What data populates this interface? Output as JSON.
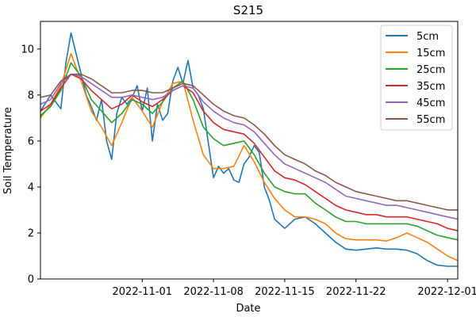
{
  "chart_data": {
    "type": "line",
    "title": "S215",
    "xlabel": "Date",
    "ylabel": "Soil Temperature",
    "xlim": [
      "2022-10-22",
      "2022-12-02"
    ],
    "ylim": [
      0,
      11.2
    ],
    "x_ticks": [
      "2022-11-01",
      "2022-11-08",
      "2022-11-15",
      "2022-11-22",
      "2022-12-01"
    ],
    "y_ticks": [
      0,
      2,
      4,
      6,
      8,
      10
    ],
    "grid": false,
    "legend_position": "top-right",
    "series": [
      {
        "name": "5cm",
        "color": "#1f77b4",
        "x": [
          "2022-10-22",
          "2022-10-23",
          "2022-10-24",
          "2022-10-24.5",
          "2022-10-25",
          "2022-10-26",
          "2022-10-26.5",
          "2022-10-27",
          "2022-10-27.5",
          "2022-10-28",
          "2022-10-28.5",
          "2022-10-29",
          "2022-10-29.5",
          "2022-10-30",
          "2022-10-30.5",
          "2022-10-31",
          "2022-10-31.5",
          "2022-11-01",
          "2022-11-01.5",
          "2022-11-02",
          "2022-11-02.5",
          "2022-11-03",
          "2022-11-03.5",
          "2022-11-04",
          "2022-11-04.5",
          "2022-11-05",
          "2022-11-05.5",
          "2022-11-06",
          "2022-11-06.5",
          "2022-11-07",
          "2022-11-07.5",
          "2022-11-08",
          "2022-11-08.5",
          "2022-11-09",
          "2022-11-09.5",
          "2022-11-10",
          "2022-11-10.5",
          "2022-11-11",
          "2022-11-11.5",
          "2022-11-12",
          "2022-11-12.5",
          "2022-11-13",
          "2022-11-13.5",
          "2022-11-14",
          "2022-11-15",
          "2022-11-16",
          "2022-11-17",
          "2022-11-18",
          "2022-11-19",
          "2022-11-20",
          "2022-11-21",
          "2022-11-22",
          "2022-11-23",
          "2022-11-24",
          "2022-11-25",
          "2022-11-26",
          "2022-11-27",
          "2022-11-28",
          "2022-11-29",
          "2022-11-30",
          "2022-12-01",
          "2022-12-02"
        ],
        "y": [
          7.3,
          8.0,
          7.4,
          9.4,
          10.7,
          8.9,
          8.0,
          7.5,
          6.9,
          7.8,
          6.0,
          5.2,
          7.2,
          7.9,
          7.6,
          7.9,
          8.4,
          7.3,
          8.3,
          6.0,
          7.6,
          6.9,
          7.2,
          8.6,
          9.2,
          8.5,
          9.5,
          8.3,
          8.0,
          7.4,
          5.9,
          4.4,
          4.9,
          4.6,
          4.8,
          4.3,
          4.2,
          5.0,
          5.3,
          5.8,
          5.5,
          4.0,
          3.4,
          2.6,
          2.2,
          2.6,
          2.7,
          2.4,
          2.0,
          1.6,
          1.3,
          1.25,
          1.3,
          1.35,
          1.3,
          1.3,
          1.25,
          1.1,
          0.8,
          0.6,
          0.55,
          0.55
        ]
      },
      {
        "name": "15cm",
        "color": "#ff7f0e",
        "x": [
          "2022-10-22",
          "2022-10-23",
          "2022-10-24",
          "2022-10-25",
          "2022-10-26",
          "2022-10-27",
          "2022-10-28",
          "2022-10-29",
          "2022-10-30",
          "2022-10-31",
          "2022-11-01",
          "2022-11-02",
          "2022-11-03",
          "2022-11-04",
          "2022-11-05",
          "2022-11-06",
          "2022-11-07",
          "2022-11-08",
          "2022-11-09",
          "2022-11-10",
          "2022-11-11",
          "2022-11-12",
          "2022-11-13",
          "2022-11-14",
          "2022-11-15",
          "2022-11-16",
          "2022-11-17",
          "2022-11-18",
          "2022-11-19",
          "2022-11-20",
          "2022-11-21",
          "2022-11-22",
          "2022-11-23",
          "2022-11-24",
          "2022-11-25",
          "2022-11-26",
          "2022-11-27",
          "2022-11-28",
          "2022-11-29",
          "2022-11-30",
          "2022-12-01",
          "2022-12-02"
        ],
        "y": [
          7.0,
          7.6,
          8.4,
          9.8,
          8.6,
          7.3,
          6.6,
          5.8,
          6.8,
          7.9,
          7.3,
          6.6,
          7.7,
          8.5,
          8.6,
          6.9,
          5.4,
          4.8,
          4.8,
          4.9,
          5.8,
          5.1,
          4.2,
          3.5,
          3.0,
          2.7,
          2.7,
          2.6,
          2.4,
          2.0,
          1.75,
          1.7,
          1.7,
          1.7,
          1.65,
          1.8,
          2.0,
          1.8,
          1.6,
          1.3,
          1.0,
          0.8
        ]
      },
      {
        "name": "25cm",
        "color": "#2ca02c",
        "x": [
          "2022-10-22",
          "2022-10-23",
          "2022-10-24",
          "2022-10-25",
          "2022-10-26",
          "2022-10-27",
          "2022-10-28",
          "2022-10-29",
          "2022-10-30",
          "2022-10-31",
          "2022-11-01",
          "2022-11-02",
          "2022-11-03",
          "2022-11-04",
          "2022-11-05",
          "2022-11-06",
          "2022-11-07",
          "2022-11-08",
          "2022-11-09",
          "2022-11-10",
          "2022-11-11",
          "2022-11-12",
          "2022-11-13",
          "2022-11-14",
          "2022-11-15",
          "2022-11-16",
          "2022-11-17",
          "2022-11-18",
          "2022-11-19",
          "2022-11-20",
          "2022-11-21",
          "2022-11-22",
          "2022-11-23",
          "2022-11-24",
          "2022-11-25",
          "2022-11-26",
          "2022-11-27",
          "2022-11-28",
          "2022-11-29",
          "2022-11-30",
          "2022-12-01",
          "2022-12-02"
        ],
        "y": [
          7.1,
          7.5,
          8.2,
          9.4,
          8.8,
          7.8,
          7.3,
          6.8,
          7.2,
          7.8,
          7.6,
          7.2,
          7.7,
          8.3,
          8.6,
          7.8,
          6.6,
          6.1,
          5.8,
          5.9,
          6.0,
          5.4,
          4.6,
          4.0,
          3.8,
          3.7,
          3.7,
          3.3,
          3.0,
          2.7,
          2.5,
          2.5,
          2.4,
          2.4,
          2.4,
          2.4,
          2.4,
          2.3,
          2.1,
          1.9,
          1.8,
          1.7
        ]
      },
      {
        "name": "35cm",
        "color": "#d62728",
        "x": [
          "2022-10-22",
          "2022-10-23",
          "2022-10-24",
          "2022-10-25",
          "2022-10-26",
          "2022-10-27",
          "2022-10-28",
          "2022-10-29",
          "2022-10-30",
          "2022-10-31",
          "2022-11-01",
          "2022-11-02",
          "2022-11-03",
          "2022-11-04",
          "2022-11-05",
          "2022-11-06",
          "2022-11-07",
          "2022-11-08",
          "2022-11-09",
          "2022-11-10",
          "2022-11-11",
          "2022-11-12",
          "2022-11-13",
          "2022-11-14",
          "2022-11-15",
          "2022-11-16",
          "2022-11-17",
          "2022-11-18",
          "2022-11-19",
          "2022-11-20",
          "2022-11-21",
          "2022-11-22",
          "2022-11-23",
          "2022-11-24",
          "2022-11-25",
          "2022-11-26",
          "2022-11-27",
          "2022-11-28",
          "2022-11-29",
          "2022-11-30",
          "2022-12-01",
          "2022-12-02"
        ],
        "y": [
          7.3,
          7.6,
          8.3,
          8.9,
          8.7,
          8.2,
          7.8,
          7.4,
          7.6,
          8.0,
          7.7,
          7.5,
          7.8,
          8.2,
          8.4,
          8.1,
          7.3,
          6.8,
          6.5,
          6.4,
          6.3,
          5.9,
          5.3,
          4.7,
          4.4,
          4.3,
          4.1,
          3.8,
          3.5,
          3.2,
          3.0,
          2.9,
          2.8,
          2.8,
          2.7,
          2.7,
          2.7,
          2.6,
          2.5,
          2.4,
          2.2,
          2.1
        ]
      },
      {
        "name": "45cm",
        "color": "#9467bd",
        "x": [
          "2022-10-22",
          "2022-10-23",
          "2022-10-24",
          "2022-10-25",
          "2022-10-26",
          "2022-10-27",
          "2022-10-28",
          "2022-10-29",
          "2022-10-30",
          "2022-10-31",
          "2022-11-01",
          "2022-11-02",
          "2022-11-03",
          "2022-11-04",
          "2022-11-05",
          "2022-11-06",
          "2022-11-07",
          "2022-11-08",
          "2022-11-09",
          "2022-11-10",
          "2022-11-11",
          "2022-11-12",
          "2022-11-13",
          "2022-11-14",
          "2022-11-15",
          "2022-11-16",
          "2022-11-17",
          "2022-11-18",
          "2022-11-19",
          "2022-11-20",
          "2022-11-21",
          "2022-11-22",
          "2022-11-23",
          "2022-11-24",
          "2022-11-25",
          "2022-11-26",
          "2022-11-27",
          "2022-11-28",
          "2022-11-29",
          "2022-11-30",
          "2022-12-01",
          "2022-12-02"
        ],
        "y": [
          7.6,
          7.8,
          8.5,
          8.9,
          8.8,
          8.5,
          8.2,
          7.9,
          7.9,
          8.0,
          7.9,
          7.8,
          7.9,
          8.2,
          8.4,
          8.3,
          7.7,
          7.3,
          7.0,
          6.8,
          6.7,
          6.4,
          5.9,
          5.4,
          5.0,
          4.8,
          4.6,
          4.4,
          4.2,
          3.9,
          3.6,
          3.5,
          3.4,
          3.3,
          3.2,
          3.2,
          3.1,
          3.0,
          2.9,
          2.8,
          2.7,
          2.6
        ]
      },
      {
        "name": "55cm",
        "color": "#8c564b",
        "x": [
          "2022-10-22",
          "2022-10-23",
          "2022-10-24",
          "2022-10-25",
          "2022-10-26",
          "2022-10-27",
          "2022-10-28",
          "2022-10-29",
          "2022-10-30",
          "2022-10-31",
          "2022-11-01",
          "2022-11-02",
          "2022-11-03",
          "2022-11-04",
          "2022-11-05",
          "2022-11-06",
          "2022-11-07",
          "2022-11-08",
          "2022-11-09",
          "2022-11-10",
          "2022-11-11",
          "2022-11-12",
          "2022-11-13",
          "2022-11-14",
          "2022-11-15",
          "2022-11-16",
          "2022-11-17",
          "2022-11-18",
          "2022-11-19",
          "2022-11-20",
          "2022-11-21",
          "2022-11-22",
          "2022-11-23",
          "2022-11-24",
          "2022-11-25",
          "2022-11-26",
          "2022-11-27",
          "2022-11-28",
          "2022-11-29",
          "2022-11-30",
          "2022-12-01",
          "2022-12-02"
        ],
        "y": [
          7.9,
          8.0,
          8.6,
          8.9,
          8.9,
          8.7,
          8.4,
          8.1,
          8.1,
          8.2,
          8.2,
          8.1,
          8.1,
          8.3,
          8.5,
          8.4,
          8.0,
          7.6,
          7.3,
          7.1,
          7.0,
          6.7,
          6.3,
          5.8,
          5.4,
          5.2,
          5.0,
          4.7,
          4.5,
          4.2,
          4.0,
          3.8,
          3.7,
          3.6,
          3.5,
          3.4,
          3.4,
          3.3,
          3.2,
          3.1,
          3.0,
          3.0
        ]
      }
    ]
  }
}
